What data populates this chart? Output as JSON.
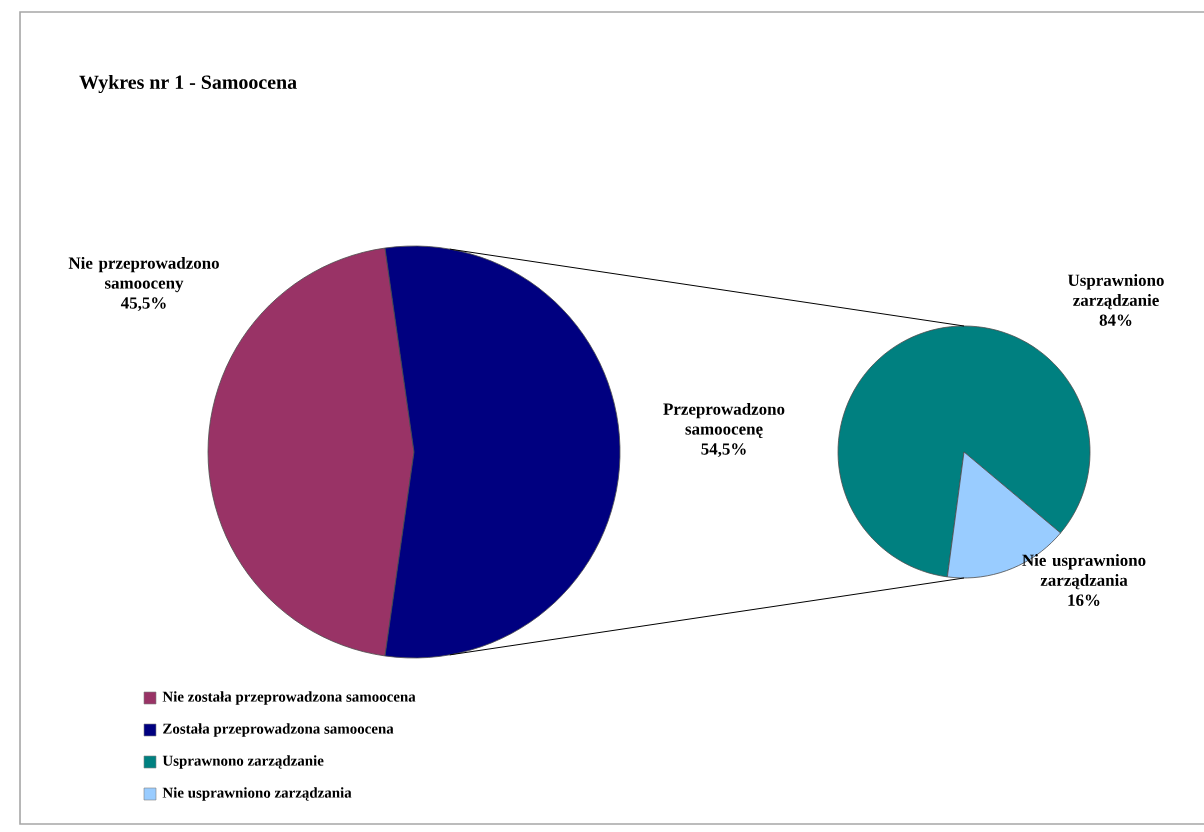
{
  "chart_data": [
    {
      "type": "pie",
      "title": "Wykres nr 1 - Samoocena",
      "categories": [
        "Nie została przeprowadzona samoocena",
        "Została przeprowadzona samoocena"
      ],
      "values": [
        45.5,
        54.5
      ],
      "colors": [
        "#993366",
        "#000080"
      ],
      "value_labels": [
        "45,5%",
        "54,5%"
      ],
      "annotations": [
        "Nie przeprowadzono samooceny",
        "Przeprowadzono samoocenę"
      ],
      "legend": "bottom left"
    },
    {
      "type": "pie",
      "categories": [
        "Usprawnono zarządzanie",
        "Nie usprawniono zarządzania"
      ],
      "values": [
        84,
        16
      ],
      "colors": [
        "#008080",
        "#99ccff"
      ],
      "value_labels": [
        "84%",
        "16%"
      ],
      "annotations": [
        "Usprawniono zarządzanie",
        "Nie usprawniono zarządzania"
      ],
      "legend": "bottom left"
    }
  ]
}
